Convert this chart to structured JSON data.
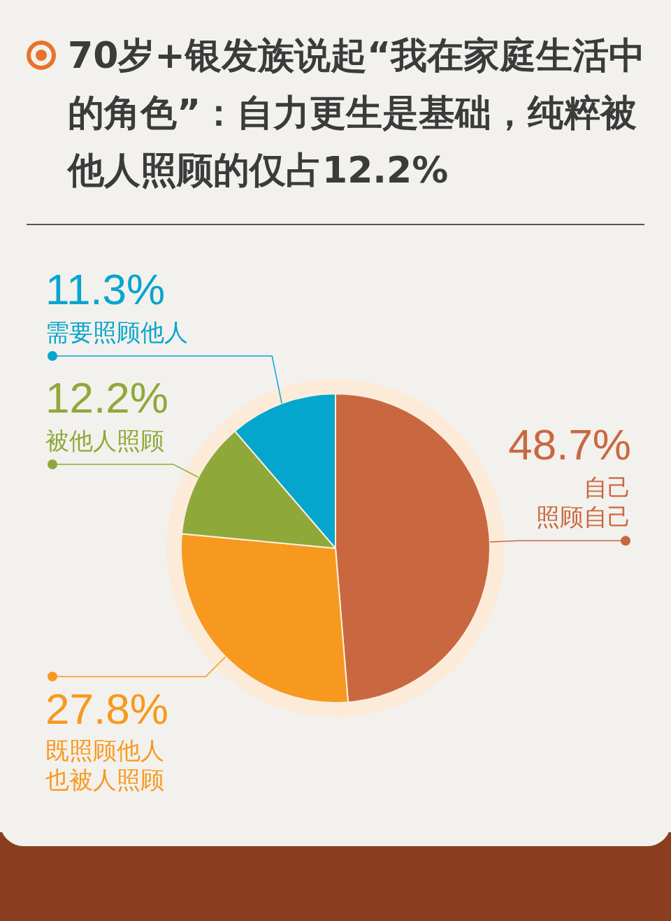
{
  "chart_data": {
    "type": "pie",
    "title": "70岁+银发族说起“我在家庭生活中的角色”：自力更生是基础，纯粹被他人照顾的仅占12.2%",
    "categories": [
      "自己照顾自己",
      "既照顾他人也被人照顾",
      "被他人照顾",
      "需要照顾他人"
    ],
    "values": [
      48.7,
      27.8,
      12.2,
      11.3
    ],
    "colors": [
      "#c96840",
      "#f7991f",
      "#8ea93a",
      "#05a6cd"
    ],
    "value_labels": [
      "48.7%",
      "27.8%",
      "12.2%",
      "11.3%"
    ]
  }
}
